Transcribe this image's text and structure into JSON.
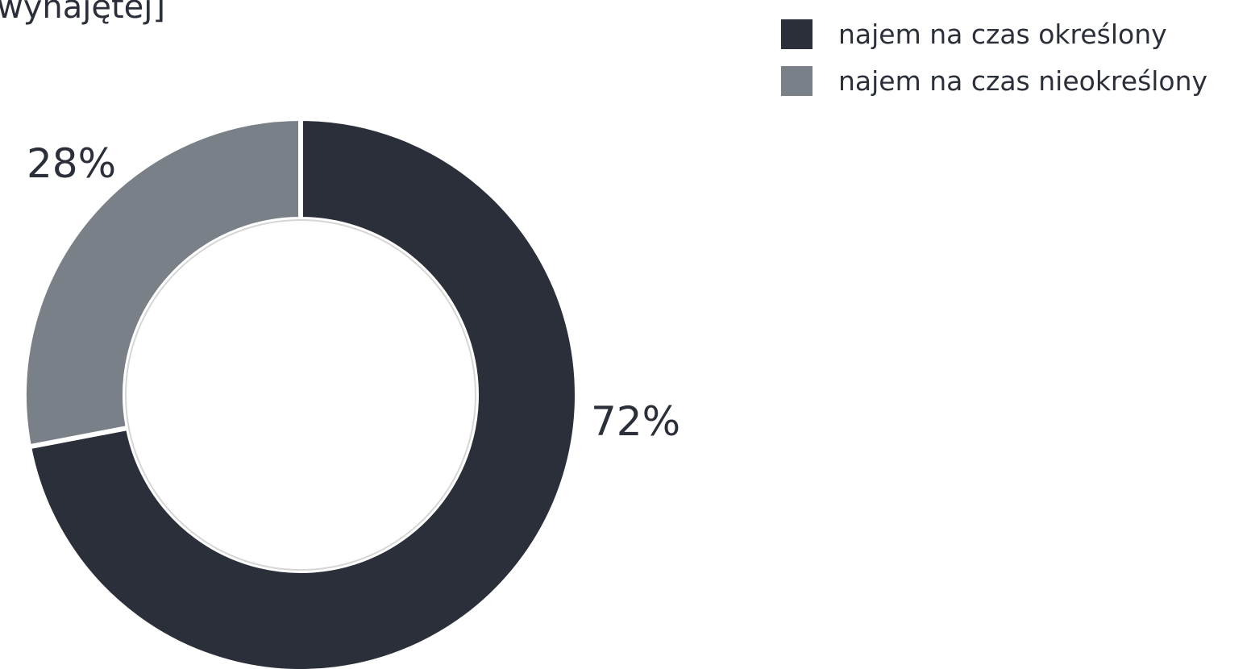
{
  "chart_data": {
    "type": "pie",
    "title": "wynajętej]",
    "categories": [
      "najem na czas określony",
      "najem na czas nieokreślony"
    ],
    "values": [
      72,
      28
    ],
    "value_labels": [
      "72%",
      "28%"
    ],
    "colors": [
      "#2a2f39",
      "#7a8087"
    ],
    "donut": true
  }
}
